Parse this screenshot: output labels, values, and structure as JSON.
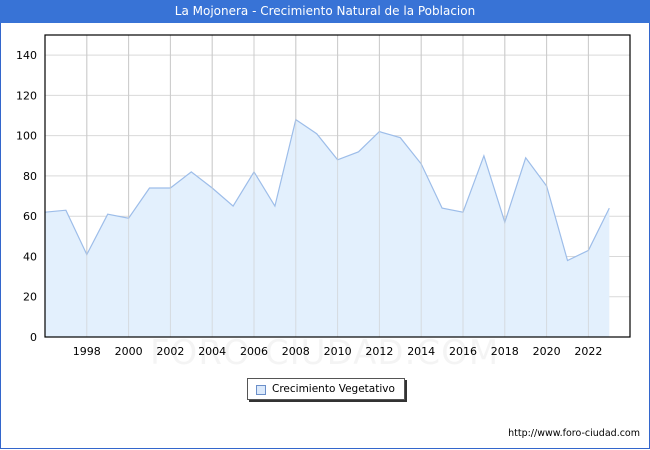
{
  "header": {
    "title": "La Mojonera - Crecimiento Natural de la Poblacion"
  },
  "legend": {
    "label": "Crecimiento Vegetativo",
    "swatch_color": "#dbe9fb"
  },
  "footer": {
    "url": "http://www.foro-ciudad.com"
  },
  "watermark": "FORO-CIUDAD.COM",
  "colors": {
    "title_bg": "#3873d6",
    "line": "#9dbde9",
    "fill": "#e3f0fd",
    "grid": "#d9d9d9"
  },
  "chart_data": {
    "type": "area",
    "title": "La Mojonera - Crecimiento Natural de la Poblacion",
    "xlabel": "",
    "ylabel": "",
    "x": [
      1996,
      1997,
      1998,
      1999,
      2000,
      2001,
      2002,
      2003,
      2004,
      2005,
      2006,
      2007,
      2008,
      2009,
      2010,
      2011,
      2012,
      2013,
      2014,
      2015,
      2016,
      2017,
      2018,
      2019,
      2020,
      2021,
      2022,
      2023
    ],
    "series": [
      {
        "name": "Crecimiento Vegetativo",
        "values": [
          62,
          63,
          41,
          61,
          59,
          74,
          74,
          82,
          74,
          65,
          82,
          65,
          108,
          101,
          88,
          92,
          102,
          99,
          86,
          64,
          62,
          90,
          57,
          89,
          75,
          38,
          43,
          64
        ]
      }
    ],
    "x_ticks": [
      "1998",
      "2000",
      "2002",
      "2004",
      "2006",
      "2008",
      "2010",
      "2012",
      "2014",
      "2016",
      "2018",
      "2020",
      "2022"
    ],
    "y_ticks": [
      "0",
      "20",
      "40",
      "60",
      "80",
      "100",
      "120",
      "140"
    ],
    "ylim": [
      0,
      150
    ],
    "grid": true,
    "legend_position": "bottom"
  }
}
